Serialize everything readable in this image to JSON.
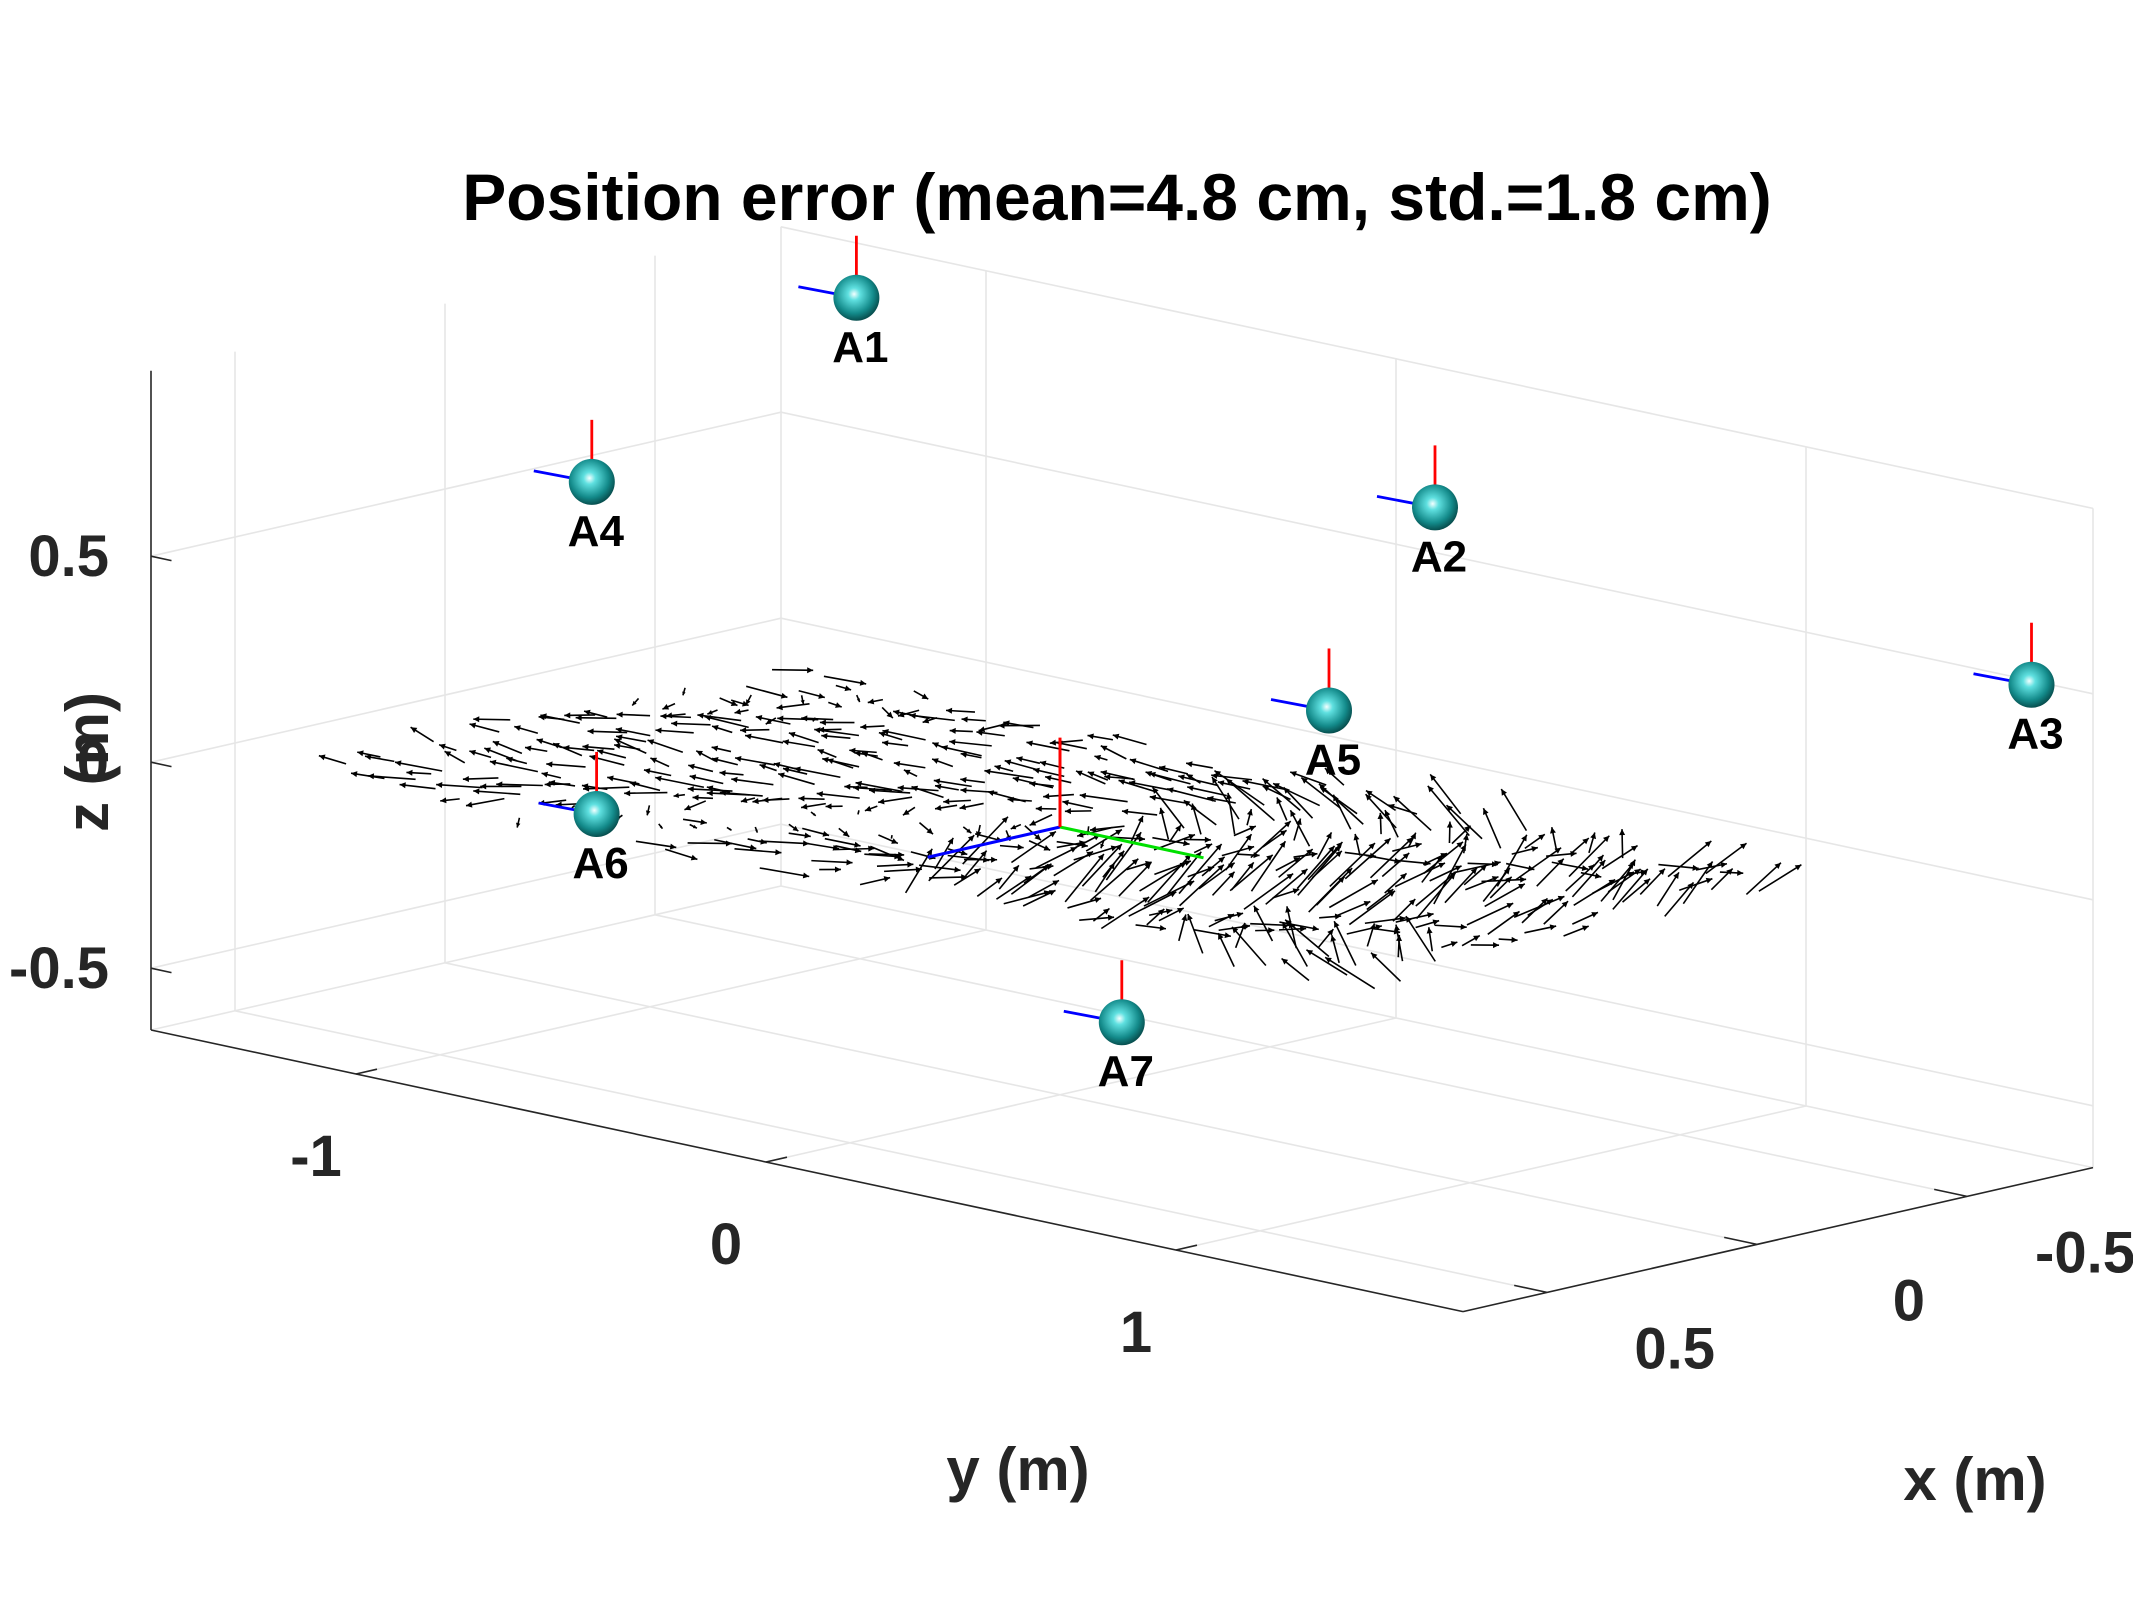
{
  "chart_data": {
    "type": "quiver3d",
    "title": "Position error (mean=4.8 cm, std.=1.8 cm)",
    "xlabel": "x (m)",
    "ylabel": "y (m)",
    "zlabel": "z (m)",
    "xlim": [
      -0.8,
      0.7
    ],
    "ylim": [
      -1.5,
      1.7
    ],
    "zlim": [
      -0.65,
      0.95
    ],
    "x_ticks": [
      -0.5,
      0,
      0.5
    ],
    "x_tick_labels": [
      "-0.5",
      "0",
      "0.5"
    ],
    "y_ticks": [
      -1,
      0,
      1
    ],
    "y_tick_labels": [
      "-1",
      "0",
      "1"
    ],
    "z_ticks": [
      -0.5,
      0,
      0.5
    ],
    "z_tick_labels": [
      "-0.5",
      "0",
      "0.5"
    ],
    "grid": true,
    "colors": {
      "anchor": "#1aa3a3",
      "anchor_highlight": "#e8ffff",
      "x_axis_marker": "#0000ff",
      "y_axis_marker": "#00e000",
      "z_axis_marker": "#ff0000",
      "error_arrows": "#000000"
    },
    "anchors": [
      {
        "name": "A1",
        "x": -0.55,
        "y": -1.06,
        "z": 0.93
      },
      {
        "name": "A2",
        "x": -0.6,
        "y": 0.3,
        "z": 0.7
      },
      {
        "name": "A3",
        "x": -0.8,
        "y": 1.55,
        "z": 0.49
      },
      {
        "name": "A4",
        "x": 0.08,
        "y": -1.06,
        "z": 0.63
      },
      {
        "name": "A5",
        "x": -0.25,
        "y": 0.4,
        "z": 0.31
      },
      {
        "name": "A6",
        "x": 0.42,
        "y": -0.7,
        "z": -0.02
      },
      {
        "name": "A7",
        "x": 0.38,
        "y": 0.54,
        "z": -0.27
      }
    ],
    "origin_frame": {
      "x": 0,
      "y": 0,
      "z": 0,
      "length": 0.35
    },
    "error_field": {
      "grid_x_range": [
        -0.5,
        0.5
      ],
      "grid_y_range": [
        -1.2,
        1.2
      ],
      "plane_z": 0.0,
      "mean_error_cm": 4.8,
      "std_error_cm": 1.8
    }
  }
}
